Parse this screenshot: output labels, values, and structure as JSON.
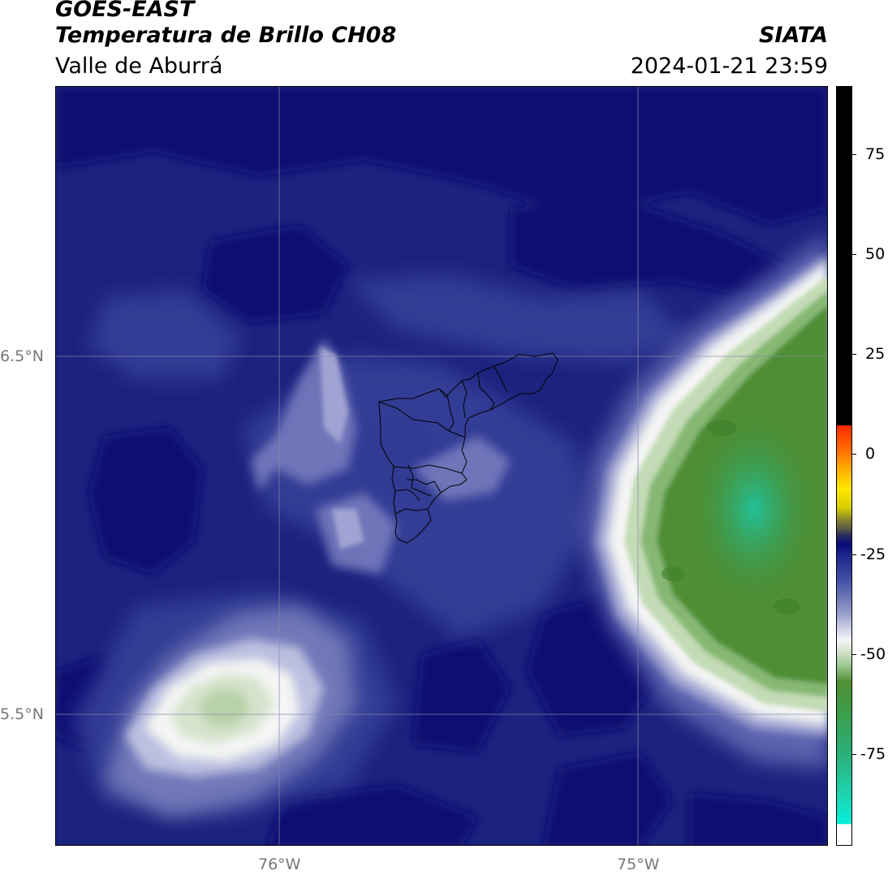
{
  "title": {
    "satellite": "GOES-EAST",
    "product": "Temperatura de Brillo CH08",
    "region": "Valle de Aburrá",
    "agency": "SIATA",
    "datetime": "2024-01-21 23:59"
  },
  "axes": {
    "lat_ticks": [
      {
        "label": "6.5°N",
        "value": 6.5
      },
      {
        "label": "5.5°N",
        "value": 5.5
      }
    ],
    "lon_ticks": [
      {
        "label": "76°W",
        "value": -76
      },
      {
        "label": "75°W",
        "value": -75
      }
    ],
    "gridlines": true
  },
  "colorbar": {
    "ticks": [
      {
        "label": "75",
        "value": 75
      },
      {
        "label": "50",
        "value": 50
      },
      {
        "label": "25",
        "value": 25
      },
      {
        "label": "0",
        "value": 0
      },
      {
        "label": "-25",
        "value": -25
      },
      {
        "label": "-50",
        "value": -50
      },
      {
        "label": "-75",
        "value": -75
      }
    ],
    "colors": {
      "black": "#000000",
      "red": "#ff2a00",
      "orange": "#ff7000",
      "yellow": "#ffe600",
      "navy": "#0a0a7a",
      "white": "#f4f5f4",
      "green": "#4f8e34",
      "cyan": "#05f0dc"
    }
  }
}
